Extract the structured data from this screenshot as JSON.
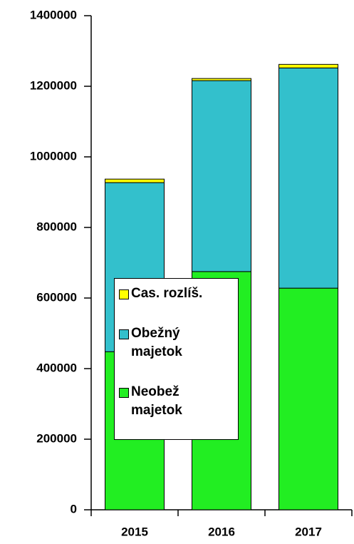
{
  "chart_data": {
    "type": "stacked_bar",
    "categories": [
      "2015",
      "2016",
      "2017"
    ],
    "series": [
      {
        "name": "Neobež majetok",
        "color": "#22ee22",
        "values": [
          448000,
          675000,
          628000
        ]
      },
      {
        "name": "Obežný majetok",
        "color": "#33c0cc",
        "values": [
          479000,
          541000,
          624000
        ]
      },
      {
        "name": "Cas. rozlíš.",
        "color": "#ffff00",
        "values": [
          10000,
          6000,
          10000
        ]
      }
    ],
    "ylim": [
      0,
      1400000
    ],
    "yticks": [
      0,
      200000,
      400000,
      600000,
      800000,
      1000000,
      1200000,
      1400000
    ]
  }
}
